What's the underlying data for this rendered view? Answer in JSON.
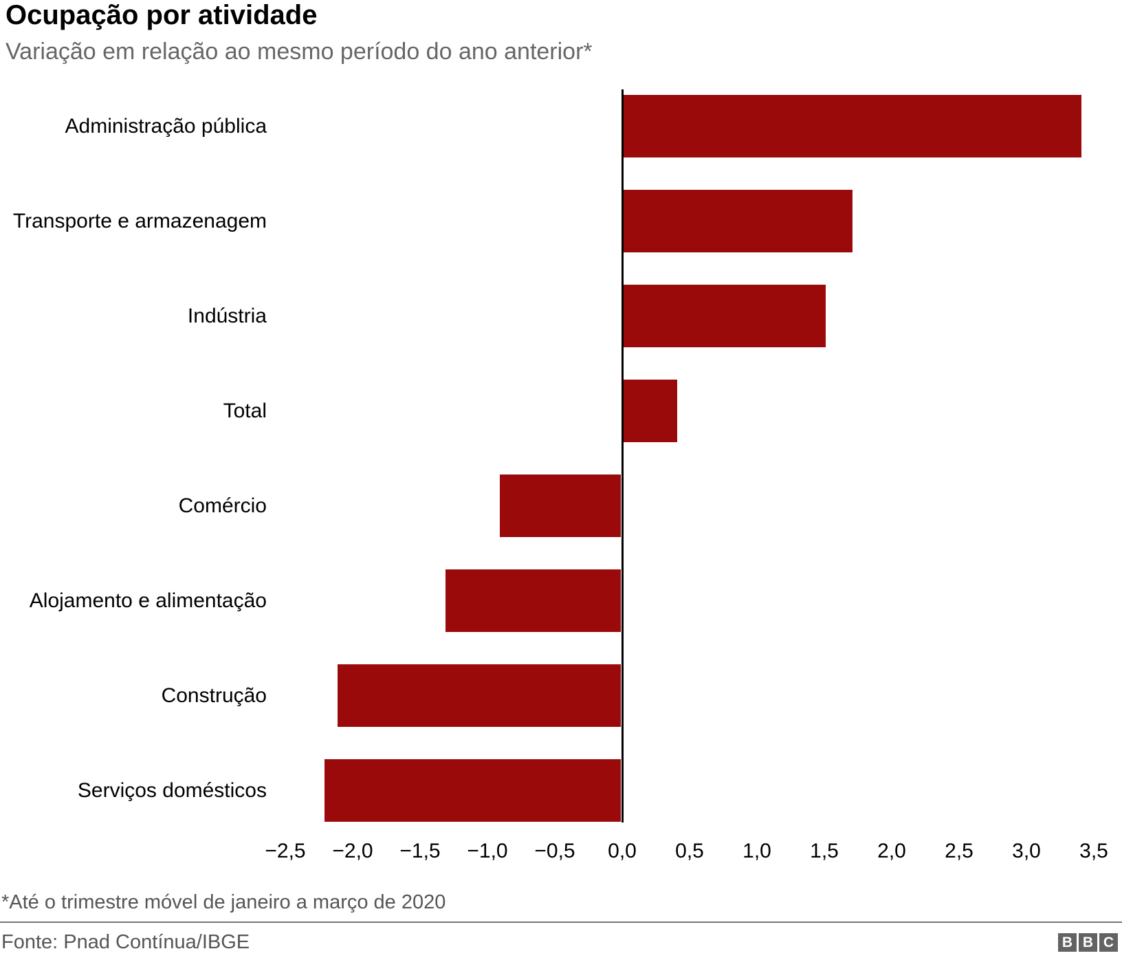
{
  "header": {
    "title": "Ocupação por atividade",
    "subtitle": "Variação em relação ao mesmo período do ano anterior*"
  },
  "chart_data": {
    "type": "bar",
    "orientation": "horizontal",
    "title": "Ocupação por atividade",
    "subtitle": "Variação em relação ao mesmo período do ano anterior*",
    "categories": [
      "Administração pública",
      "Transporte e armazenagem",
      "Indústria",
      "Total",
      "Comércio",
      "Alojamento e alimentação",
      "Construção",
      "Serviços domésticos"
    ],
    "values": [
      3.4,
      1.7,
      1.5,
      0.4,
      -0.9,
      -1.3,
      -2.1,
      -2.2
    ],
    "xlim": [
      -2.75,
      3.75
    ],
    "x_ticks": [
      {
        "label": "−2,5",
        "value": -2.5
      },
      {
        "label": "−2,0",
        "value": -2.0
      },
      {
        "label": "−1,5",
        "value": -1.5
      },
      {
        "label": "−1,0",
        "value": -1.0
      },
      {
        "label": "−0,5",
        "value": -0.5
      },
      {
        "label": "0,0",
        "value": 0.0
      },
      {
        "label": "0,5",
        "value": 0.5
      },
      {
        "label": "1,0",
        "value": 1.0
      },
      {
        "label": "1,5",
        "value": 1.5
      },
      {
        "label": "2,0",
        "value": 2.0
      },
      {
        "label": "2,5",
        "value": 2.5
      },
      {
        "label": "3,0",
        "value": 3.0
      },
      {
        "label": "3,5",
        "value": 3.5
      }
    ],
    "grid": false,
    "legend": false,
    "bar_color": "#9a0a0a",
    "axis_color": "#000000"
  },
  "footer": {
    "footnote": "*Até o trimestre móvel de janeiro a março de 2020",
    "source": "Fonte: Pnad Contínua/IBGE",
    "logo": {
      "letters": [
        "B",
        "B",
        "C"
      ],
      "square_color": "#636363",
      "letter_color": "#ffffff"
    }
  }
}
